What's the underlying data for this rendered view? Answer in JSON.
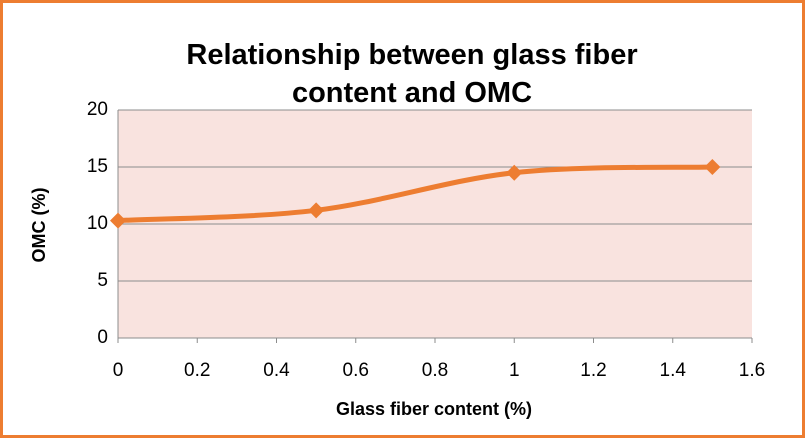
{
  "chart_data": {
    "type": "line",
    "title": "Relationship between glass fiber content and OMC",
    "x_label": "Glass fiber content (%)",
    "y_label": "OMC (%)",
    "x": [
      0,
      0.5,
      1,
      1.5
    ],
    "series": [
      {
        "name": "OMC",
        "color": "#ed7d31",
        "values": [
          10.3,
          11.2,
          14.5,
          15.0
        ]
      }
    ],
    "xlim": [
      0,
      1.6
    ],
    "xticks": [
      0,
      0.2,
      0.4,
      0.6,
      0.8,
      1,
      1.2,
      1.4,
      1.6
    ],
    "ylim": [
      0,
      20
    ],
    "yticks": [
      0,
      5,
      10,
      15,
      20
    ],
    "grid": true,
    "smooth": true
  }
}
